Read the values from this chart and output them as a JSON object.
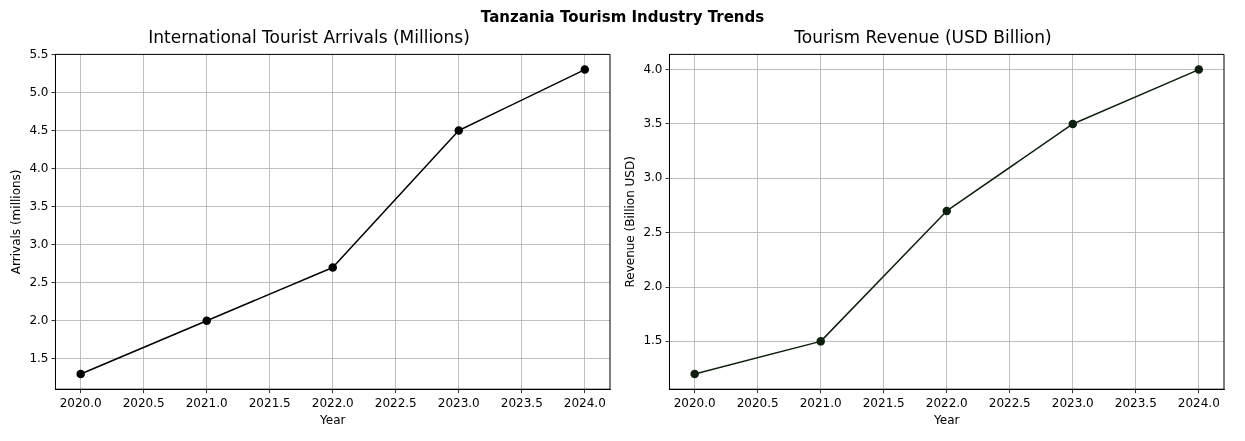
{
  "chart_data": [
    {
      "type": "line",
      "title": "Tanzania Tourism Industry Trends",
      "subtitle": "International Tourist Arrivals (Millions)",
      "xlabel": "Year",
      "ylabel": "Arrivals (millions)",
      "x": [
        2020,
        2021,
        2022,
        2023,
        2024
      ],
      "series": [
        {
          "color": "#000000",
          "values": [
            1.3,
            2.0,
            2.7,
            4.5,
            5.3
          ]
        }
      ],
      "xlim": [
        2019.8,
        2024.2
      ],
      "xticks": [
        {
          "value": 2020,
          "label": "2020.0"
        },
        2020.5,
        {
          "value": 2021,
          "label": "2021.0"
        },
        2021.5,
        {
          "value": 2022,
          "label": "2022.0"
        },
        2022.5,
        {
          "value": 2023,
          "label": "2023.0"
        },
        2023.5,
        {
          "value": 2024,
          "label": "2024.0"
        }
      ],
      "ylim": [
        1.1,
        5.5
      ],
      "yticks": [
        1.5,
        {
          "value": 2,
          "label": "2.0"
        },
        2.5,
        {
          "value": 3,
          "label": "3.0"
        },
        3.5,
        {
          "value": 4,
          "label": "4.0"
        },
        4.5,
        {
          "value": 5,
          "label": "5.0"
        },
        5.5
      ],
      "grid": true,
      "marker": "circle",
      "line_style": "solid"
    },
    {
      "type": "line",
      "title": "Tourism Revenue (USD Billion)",
      "xlabel": "Year",
      "ylabel": "Revenue (Billion USD)",
      "x": [
        2020,
        2021,
        2022,
        2023,
        2024
      ],
      "series": [
        {
          "color": "#0f1f0f",
          "values": [
            1.2,
            1.5,
            2.7,
            3.5,
            4.0
          ]
        }
      ],
      "xlim": [
        2019.8,
        2024.2
      ],
      "xticks": [
        {
          "value": 2020,
          "label": "2020.0"
        },
        2020.5,
        {
          "value": 2021,
          "label": "2021.0"
        },
        2021.5,
        {
          "value": 2022,
          "label": "2022.0"
        },
        2022.5,
        {
          "value": 2023,
          "label": "2023.0"
        },
        2023.5,
        {
          "value": 2024,
          "label": "2024.0"
        }
      ],
      "ylim": [
        1.06,
        4.14
      ],
      "yticks": [
        1.5,
        {
          "value": 2,
          "label": "2.0"
        },
        2.5,
        {
          "value": 3,
          "label": "3.0"
        },
        3.5,
        {
          "value": 4,
          "label": "4.0"
        }
      ],
      "grid": true,
      "marker": "circle",
      "line_style": "solid"
    }
  ]
}
